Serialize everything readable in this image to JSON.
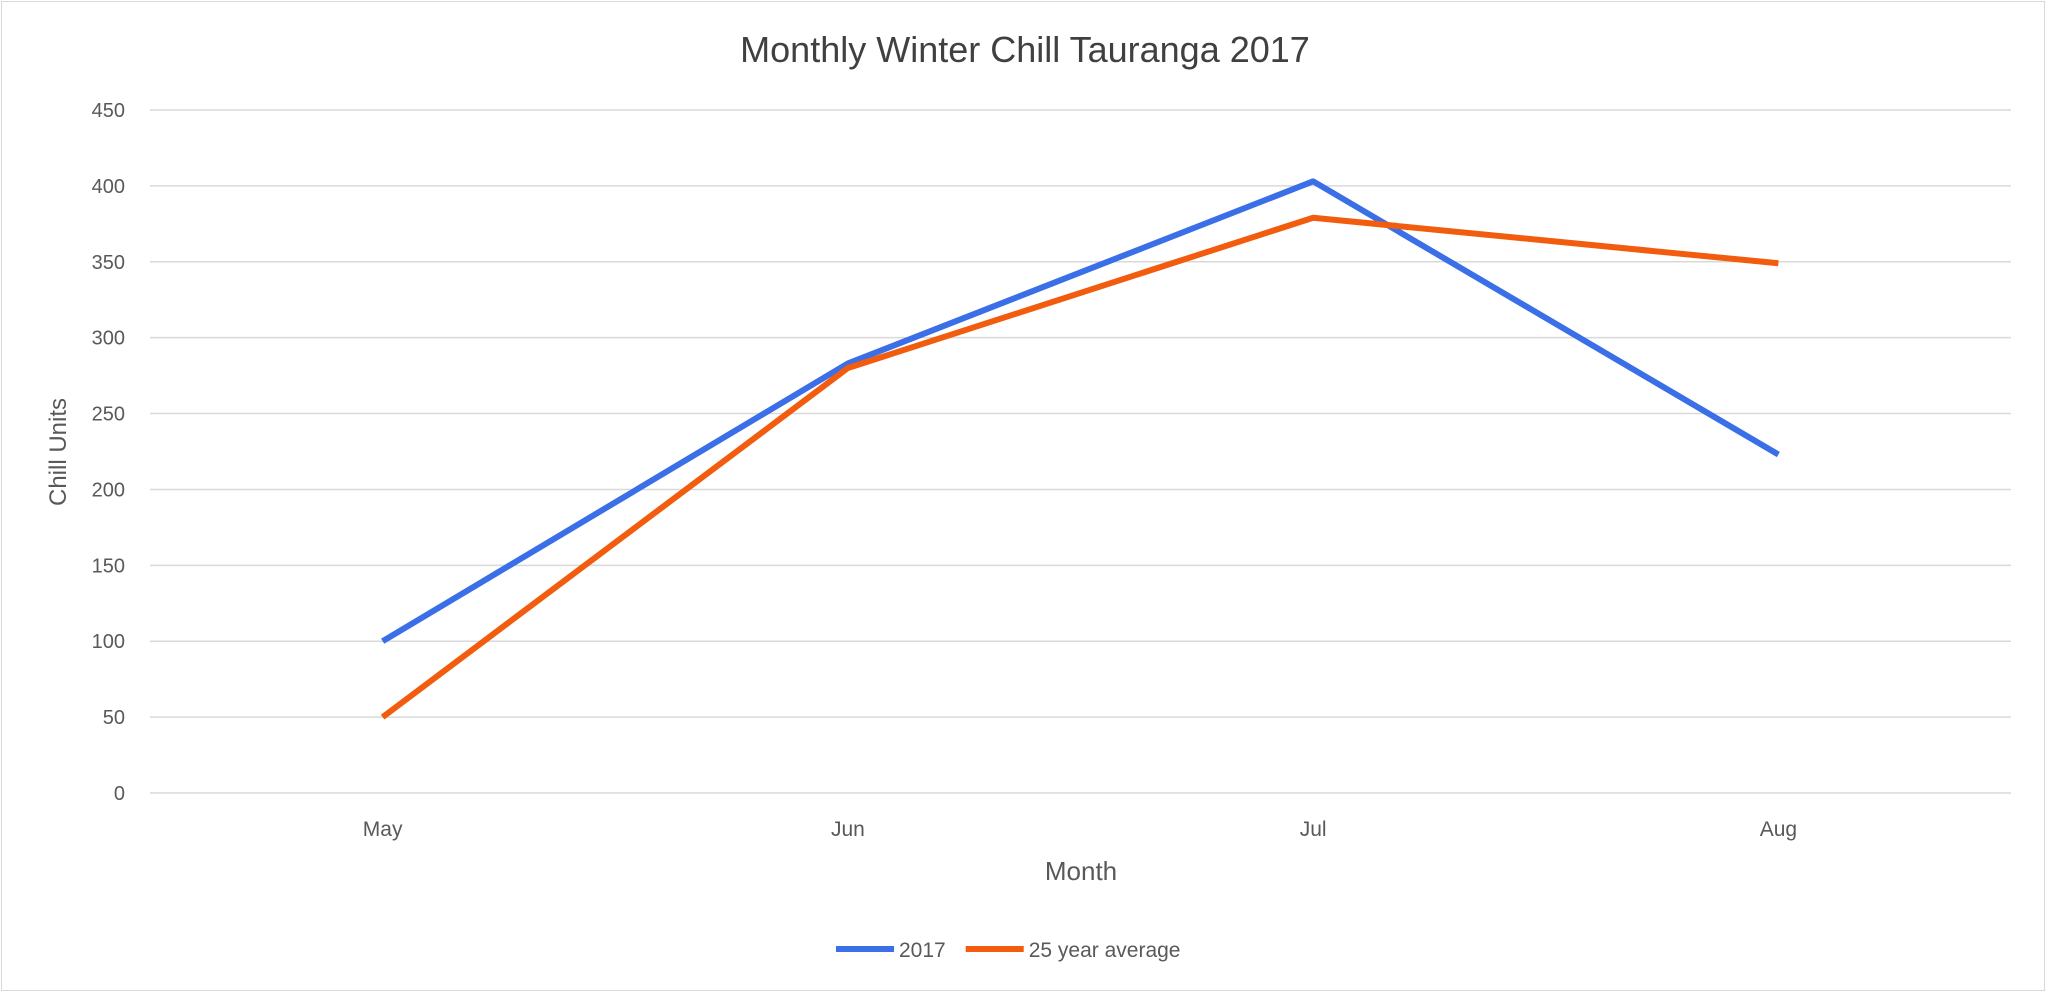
{
  "chart_data": {
    "type": "line",
    "title": "Monthly Winter Chill Tauranga 2017",
    "xlabel": "Month",
    "ylabel": "Chill Units",
    "categories": [
      "May",
      "Jun",
      "Jul",
      "Aug"
    ],
    "ylim": [
      0,
      450
    ],
    "yticks": [
      0,
      50,
      100,
      150,
      200,
      250,
      300,
      350,
      400,
      450
    ],
    "grid": true,
    "legend": "bottom",
    "series": [
      {
        "name": "2017",
        "color": "#3a6fe8",
        "values": [
          100,
          283,
          403,
          223
        ]
      },
      {
        "name": "25 year average",
        "color": "#f25c0f",
        "values": [
          50,
          280,
          379,
          349
        ]
      }
    ]
  }
}
